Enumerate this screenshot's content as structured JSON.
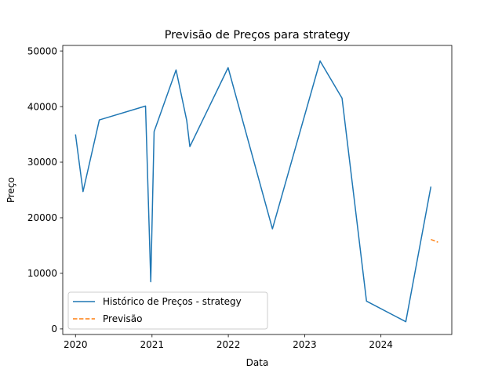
{
  "chart_data": {
    "type": "line",
    "title": "Previsão de Preços para strategy",
    "xlabel": "Data",
    "ylabel": "Preço",
    "xlim": [
      "2019-11-01",
      "2024-12-05"
    ],
    "ylim": [
      -1000,
      51000
    ],
    "x_ticks": [
      {
        "label": "2020",
        "value": "2020-01-01"
      },
      {
        "label": "2021",
        "value": "2021-01-01"
      },
      {
        "label": "2022",
        "value": "2022-01-01"
      },
      {
        "label": "2023",
        "value": "2023-01-01"
      },
      {
        "label": "2024",
        "value": "2024-01-01"
      }
    ],
    "y_ticks": [
      0,
      10000,
      20000,
      30000,
      40000,
      50000
    ],
    "grid": false,
    "legend_position": "lower-left",
    "series": [
      {
        "name": "Histórico de Preços - strategy",
        "color": "#1f77b4",
        "style": "solid",
        "points": [
          {
            "x": "2020-01-01",
            "y": 35000
          },
          {
            "x": "2020-02-06",
            "y": 24700
          },
          {
            "x": "2020-04-24",
            "y": 37600
          },
          {
            "x": "2020-12-01",
            "y": 40100
          },
          {
            "x": "2020-12-26",
            "y": 8500
          },
          {
            "x": "2021-01-11",
            "y": 35500
          },
          {
            "x": "2021-04-26",
            "y": 46600
          },
          {
            "x": "2021-06-16",
            "y": 37500
          },
          {
            "x": "2021-07-01",
            "y": 32800
          },
          {
            "x": "2021-12-31",
            "y": 47000
          },
          {
            "x": "2022-07-31",
            "y": 18000
          },
          {
            "x": "2023-03-16",
            "y": 48200
          },
          {
            "x": "2023-06-29",
            "y": 41500
          },
          {
            "x": "2023-10-24",
            "y": 5000
          },
          {
            "x": "2024-04-29",
            "y": 1300
          },
          {
            "x": "2024-08-27",
            "y": 25600
          }
        ]
      },
      {
        "name": "Previsão",
        "color": "#ff7f0e",
        "style": "dashed",
        "points": [
          {
            "x": "2024-08-27",
            "y": 16100
          },
          {
            "x": "2024-09-30",
            "y": 15600
          }
        ]
      }
    ]
  }
}
